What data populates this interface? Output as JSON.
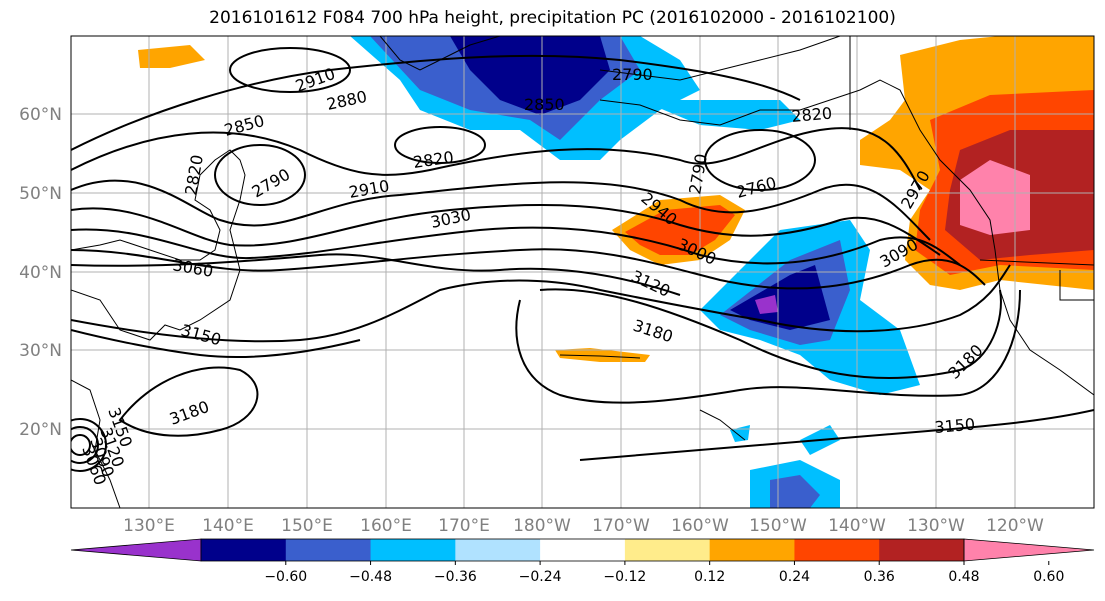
{
  "title": "2016101612 F084 700 hPa height, precipitation PC (2016102000 - 2016102100)",
  "lon_labels": [
    "130°E",
    "140°E",
    "150°E",
    "160°E",
    "170°E",
    "180°W",
    "170°W",
    "160°W",
    "150°W",
    "140°W",
    "130°W",
    "120°W"
  ],
  "lat_labels": [
    "60°N",
    "50°N",
    "40°N",
    "30°N",
    "20°N"
  ],
  "colorbar": {
    "colors": [
      "#9932cc",
      "#00008b",
      "#3a5fcd",
      "#00bfff",
      "#b0e2ff",
      "#ffffff",
      "#ffec8b",
      "#ffa500",
      "#ff4500",
      "#b22222",
      "#ff82ab"
    ],
    "labels": [
      "−0.60",
      "−0.48",
      "−0.36",
      "−0.24",
      "−0.12",
      "0.12",
      "0.24",
      "0.36",
      "0.48",
      "0.60"
    ]
  },
  "contour_labels": [
    "2910",
    "2880",
    "2850",
    "2820",
    "2790",
    "2850",
    "2820",
    "2790",
    "2820",
    "2760",
    "2790",
    "2940",
    "2970",
    "3000",
    "3030",
    "2910",
    "3060",
    "3090",
    "3120",
    "3150",
    "3180",
    "3180",
    "3180",
    "3150",
    "3150",
    "3120",
    "3090",
    "3060"
  ]
}
